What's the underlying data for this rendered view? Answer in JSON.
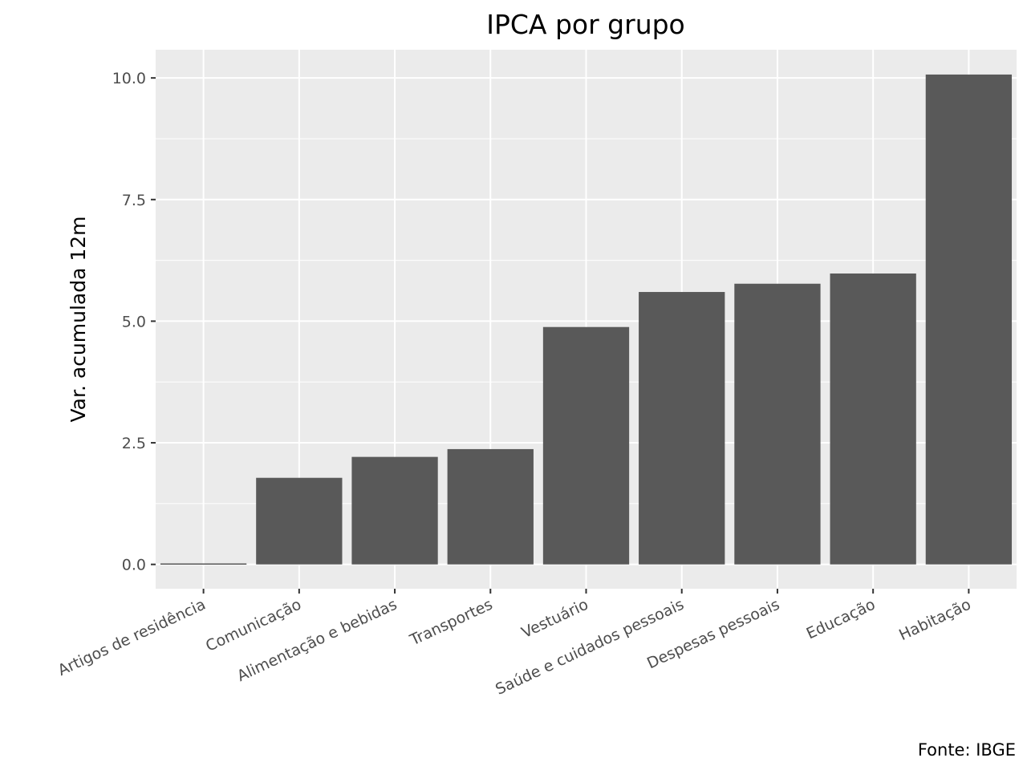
{
  "chart_data": {
    "type": "bar",
    "title": "IPCA por grupo",
    "xlabel": "",
    "ylabel": "Var. acumulada 12m",
    "caption": "Fonte: IBGE",
    "categories": [
      "Artigos de residência",
      "Comunicação",
      "Alimentação e bebidas",
      "Transportes",
      "Vestuário",
      "Saúde e cuidados pessoais",
      "Despesas pessoais",
      "Educação",
      "Habitação"
    ],
    "values": [
      0.02,
      1.78,
      2.21,
      2.37,
      4.88,
      5.6,
      5.77,
      5.98,
      10.07
    ],
    "ylim": [
      -0.5,
      10.58
    ],
    "yticks": [
      0,
      2.5,
      5,
      7.5,
      10
    ],
    "ytick_labels": [
      "0.0",
      "2.5",
      "5.0",
      "7.5",
      "10.0"
    ],
    "grid": true,
    "colors": {
      "panel": "#ebebeb",
      "bar": "#595959",
      "grid": "#ffffff"
    }
  }
}
